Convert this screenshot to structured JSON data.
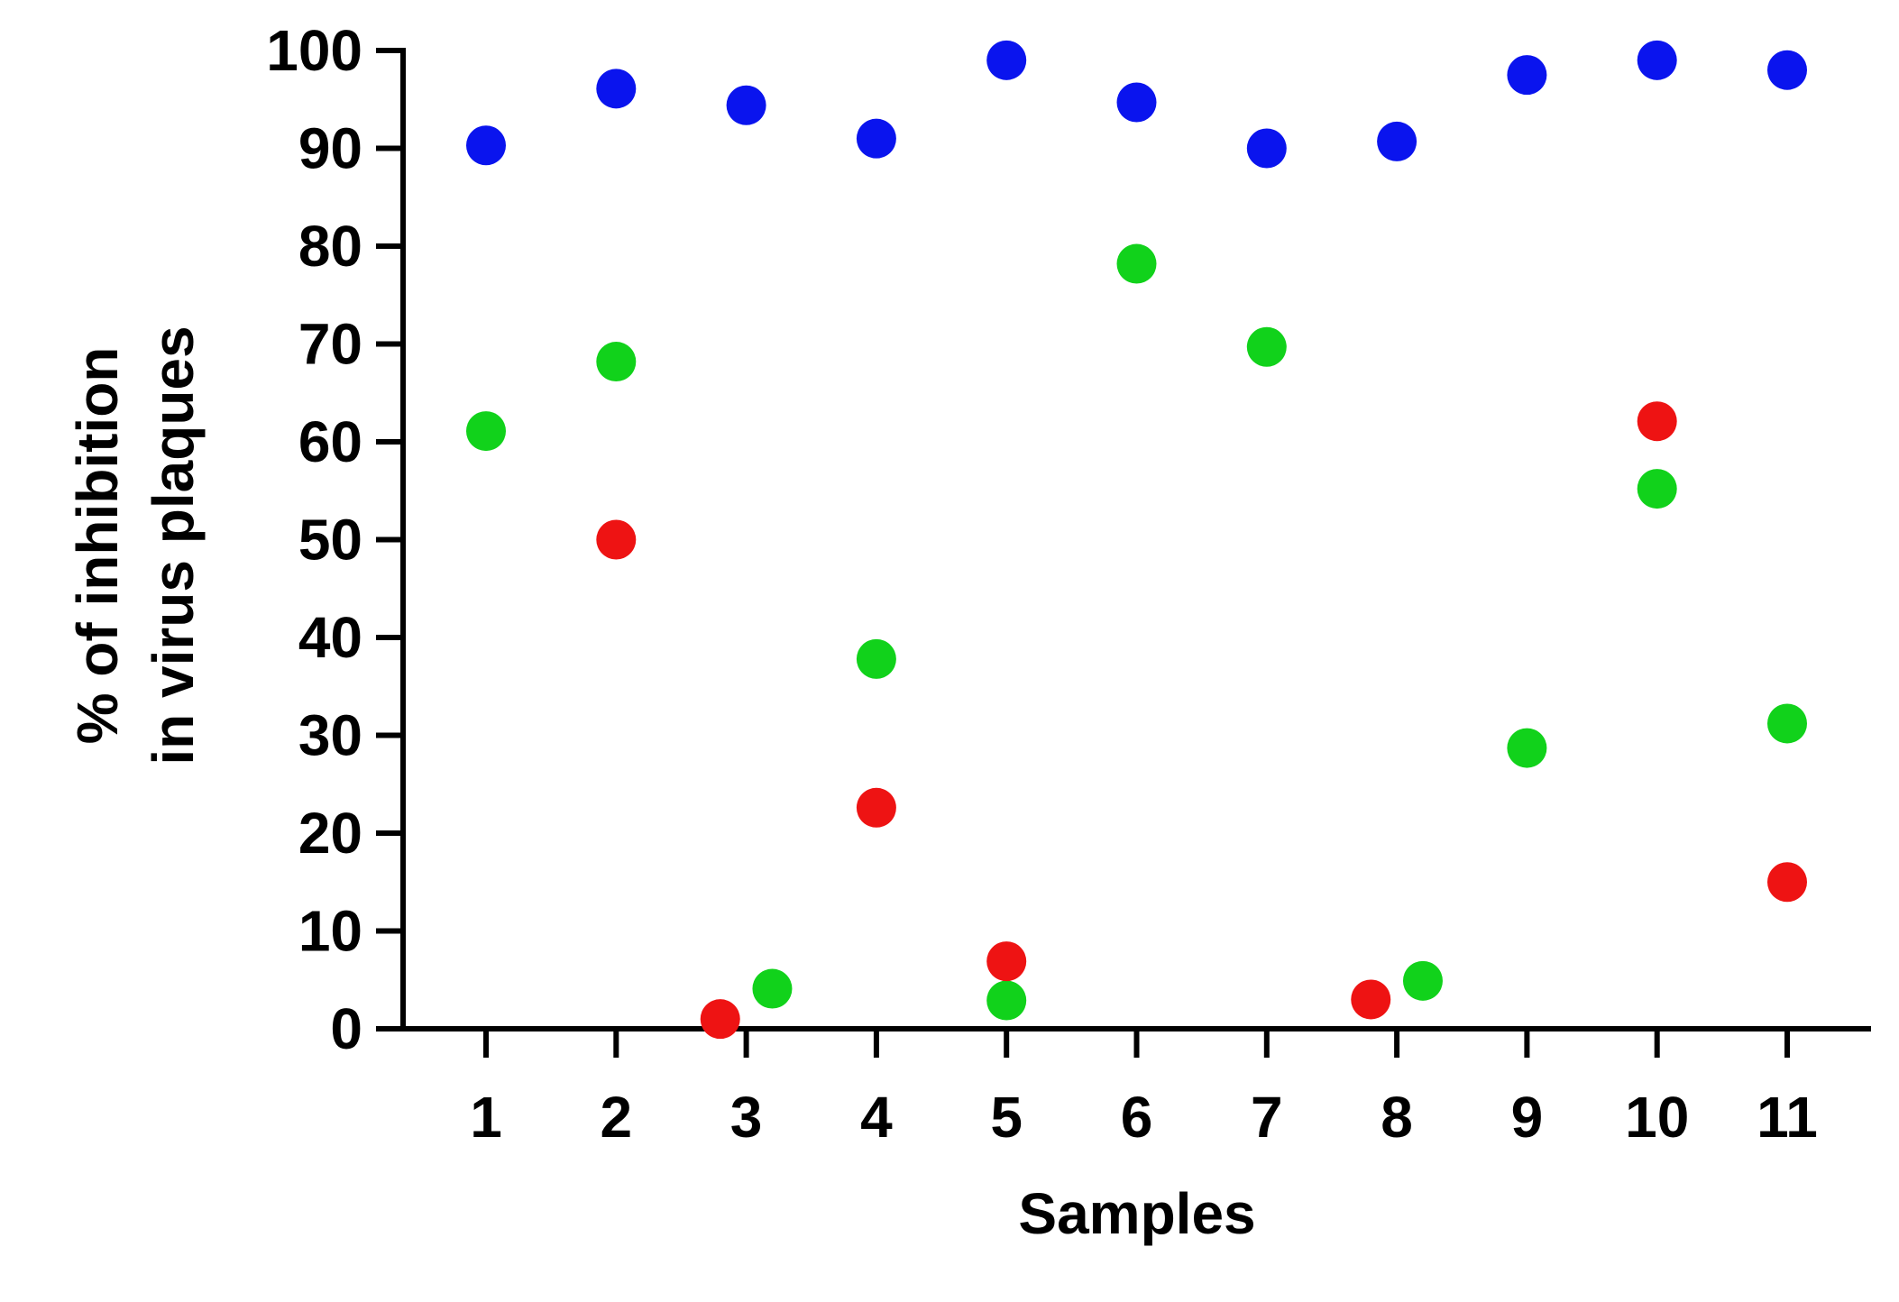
{
  "chart_data": {
    "type": "scatter",
    "title": "",
    "xlabel": "Samples",
    "ylabel_lines": [
      "% of inhibition",
      "in virus plaques"
    ],
    "x_categories": [
      "1",
      "2",
      "3",
      "4",
      "5",
      "6",
      "7",
      "8",
      "9",
      "10",
      "11"
    ],
    "ylim": [
      0,
      100
    ],
    "yticks": [
      0,
      10,
      20,
      30,
      40,
      50,
      60,
      70,
      80,
      90,
      100
    ],
    "grid": false,
    "legend": "none",
    "series": [
      {
        "color": "#0a14ee",
        "points": [
          {
            "x": 1,
            "y": 90.3
          },
          {
            "x": 2,
            "y": 96.1
          },
          {
            "x": 3,
            "y": 94.4
          },
          {
            "x": 4,
            "y": 91.0
          },
          {
            "x": 5,
            "y": 99.0
          },
          {
            "x": 6,
            "y": 94.7
          },
          {
            "x": 7,
            "y": 90.0
          },
          {
            "x": 8,
            "y": 90.7
          },
          {
            "x": 9,
            "y": 97.5
          },
          {
            "x": 10,
            "y": 99.0
          },
          {
            "x": 11,
            "y": 98.0
          }
        ]
      },
      {
        "color": "#11d21b",
        "points": [
          {
            "x": 1,
            "y": 61.1
          },
          {
            "x": 2,
            "y": 68.2
          },
          {
            "x": 3.2,
            "y": 4.1
          },
          {
            "x": 4,
            "y": 37.8
          },
          {
            "x": 5,
            "y": 2.9
          },
          {
            "x": 6,
            "y": 78.2
          },
          {
            "x": 7,
            "y": 69.7
          },
          {
            "x": 8.2,
            "y": 4.9
          },
          {
            "x": 9,
            "y": 28.7
          },
          {
            "x": 10,
            "y": 55.2
          },
          {
            "x": 11,
            "y": 31.2
          }
        ]
      },
      {
        "color": "#ee1313",
        "points": [
          {
            "x": 2,
            "y": 50.0
          },
          {
            "x": 2.8,
            "y": 1.0
          },
          {
            "x": 4,
            "y": 22.6
          },
          {
            "x": 5,
            "y": 6.9
          },
          {
            "x": 7.8,
            "y": 3.0
          },
          {
            "x": 10,
            "y": 62.1
          },
          {
            "x": 11,
            "y": 15.0
          }
        ]
      }
    ]
  }
}
